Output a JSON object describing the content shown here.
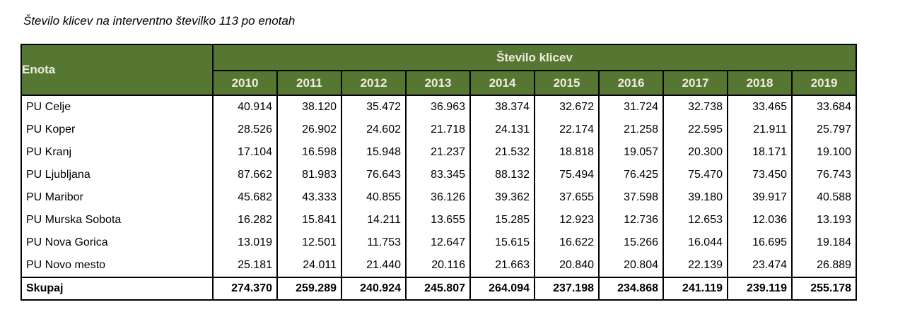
{
  "title": "Število klicev na interventno številko 113 po enotah",
  "colors": {
    "header_background": "#567732",
    "header_text": "#EEECE1",
    "border": "#000000",
    "body_background": "#FFFFFF"
  },
  "table": {
    "corner_header": "Enota",
    "group_header": "Število klicev",
    "years": [
      "2010",
      "2011",
      "2012",
      "2013",
      "2014",
      "2015",
      "2016",
      "2017",
      "2018",
      "2019"
    ],
    "rows": [
      {
        "label": "PU Celje",
        "values": [
          "40.914",
          "38.120",
          "35.472",
          "36.963",
          "38.374",
          "32.672",
          "31.724",
          "32.738",
          "33.465",
          "33.684"
        ]
      },
      {
        "label": "PU Koper",
        "values": [
          "28.526",
          "26.902",
          "24.602",
          "21.718",
          "24.131",
          "22.174",
          "21.258",
          "22.595",
          "21.911",
          "25.797"
        ]
      },
      {
        "label": "PU Kranj",
        "values": [
          "17.104",
          "16.598",
          "15.948",
          "21.237",
          "21.532",
          "18.818",
          "19.057",
          "20.300",
          "18.171",
          "19.100"
        ]
      },
      {
        "label": "PU Ljubljana",
        "values": [
          "87.662",
          "81.983",
          "76.643",
          "83.345",
          "88.132",
          "75.494",
          "76.425",
          "75.470",
          "73.450",
          "76.743"
        ]
      },
      {
        "label": "PU Maribor",
        "values": [
          "45.682",
          "43.333",
          "40.855",
          "36.126",
          "39.362",
          "37.655",
          "37.598",
          "39.180",
          "39.917",
          "40.588"
        ]
      },
      {
        "label": "PU Murska Sobota",
        "values": [
          "16.282",
          "15.841",
          "14.211",
          "13.655",
          "15.285",
          "12.923",
          "12.736",
          "12.653",
          "12.036",
          "13.193"
        ]
      },
      {
        "label": "PU Nova Gorica",
        "values": [
          "13.019",
          "12.501",
          "11.753",
          "12.647",
          "15.615",
          "16.622",
          "15.266",
          "16.044",
          "16.695",
          "19.184"
        ]
      },
      {
        "label": "PU Novo mesto",
        "values": [
          "25.181",
          "24.011",
          "21.440",
          "20.116",
          "21.663",
          "20.840",
          "20.804",
          "22.139",
          "23.474",
          "26.889"
        ]
      }
    ],
    "total": {
      "label": "Skupaj",
      "values": [
        "274.370",
        "259.289",
        "240.924",
        "245.807",
        "264.094",
        "237.198",
        "234.868",
        "241.119",
        "239.119",
        "255.178"
      ]
    }
  }
}
